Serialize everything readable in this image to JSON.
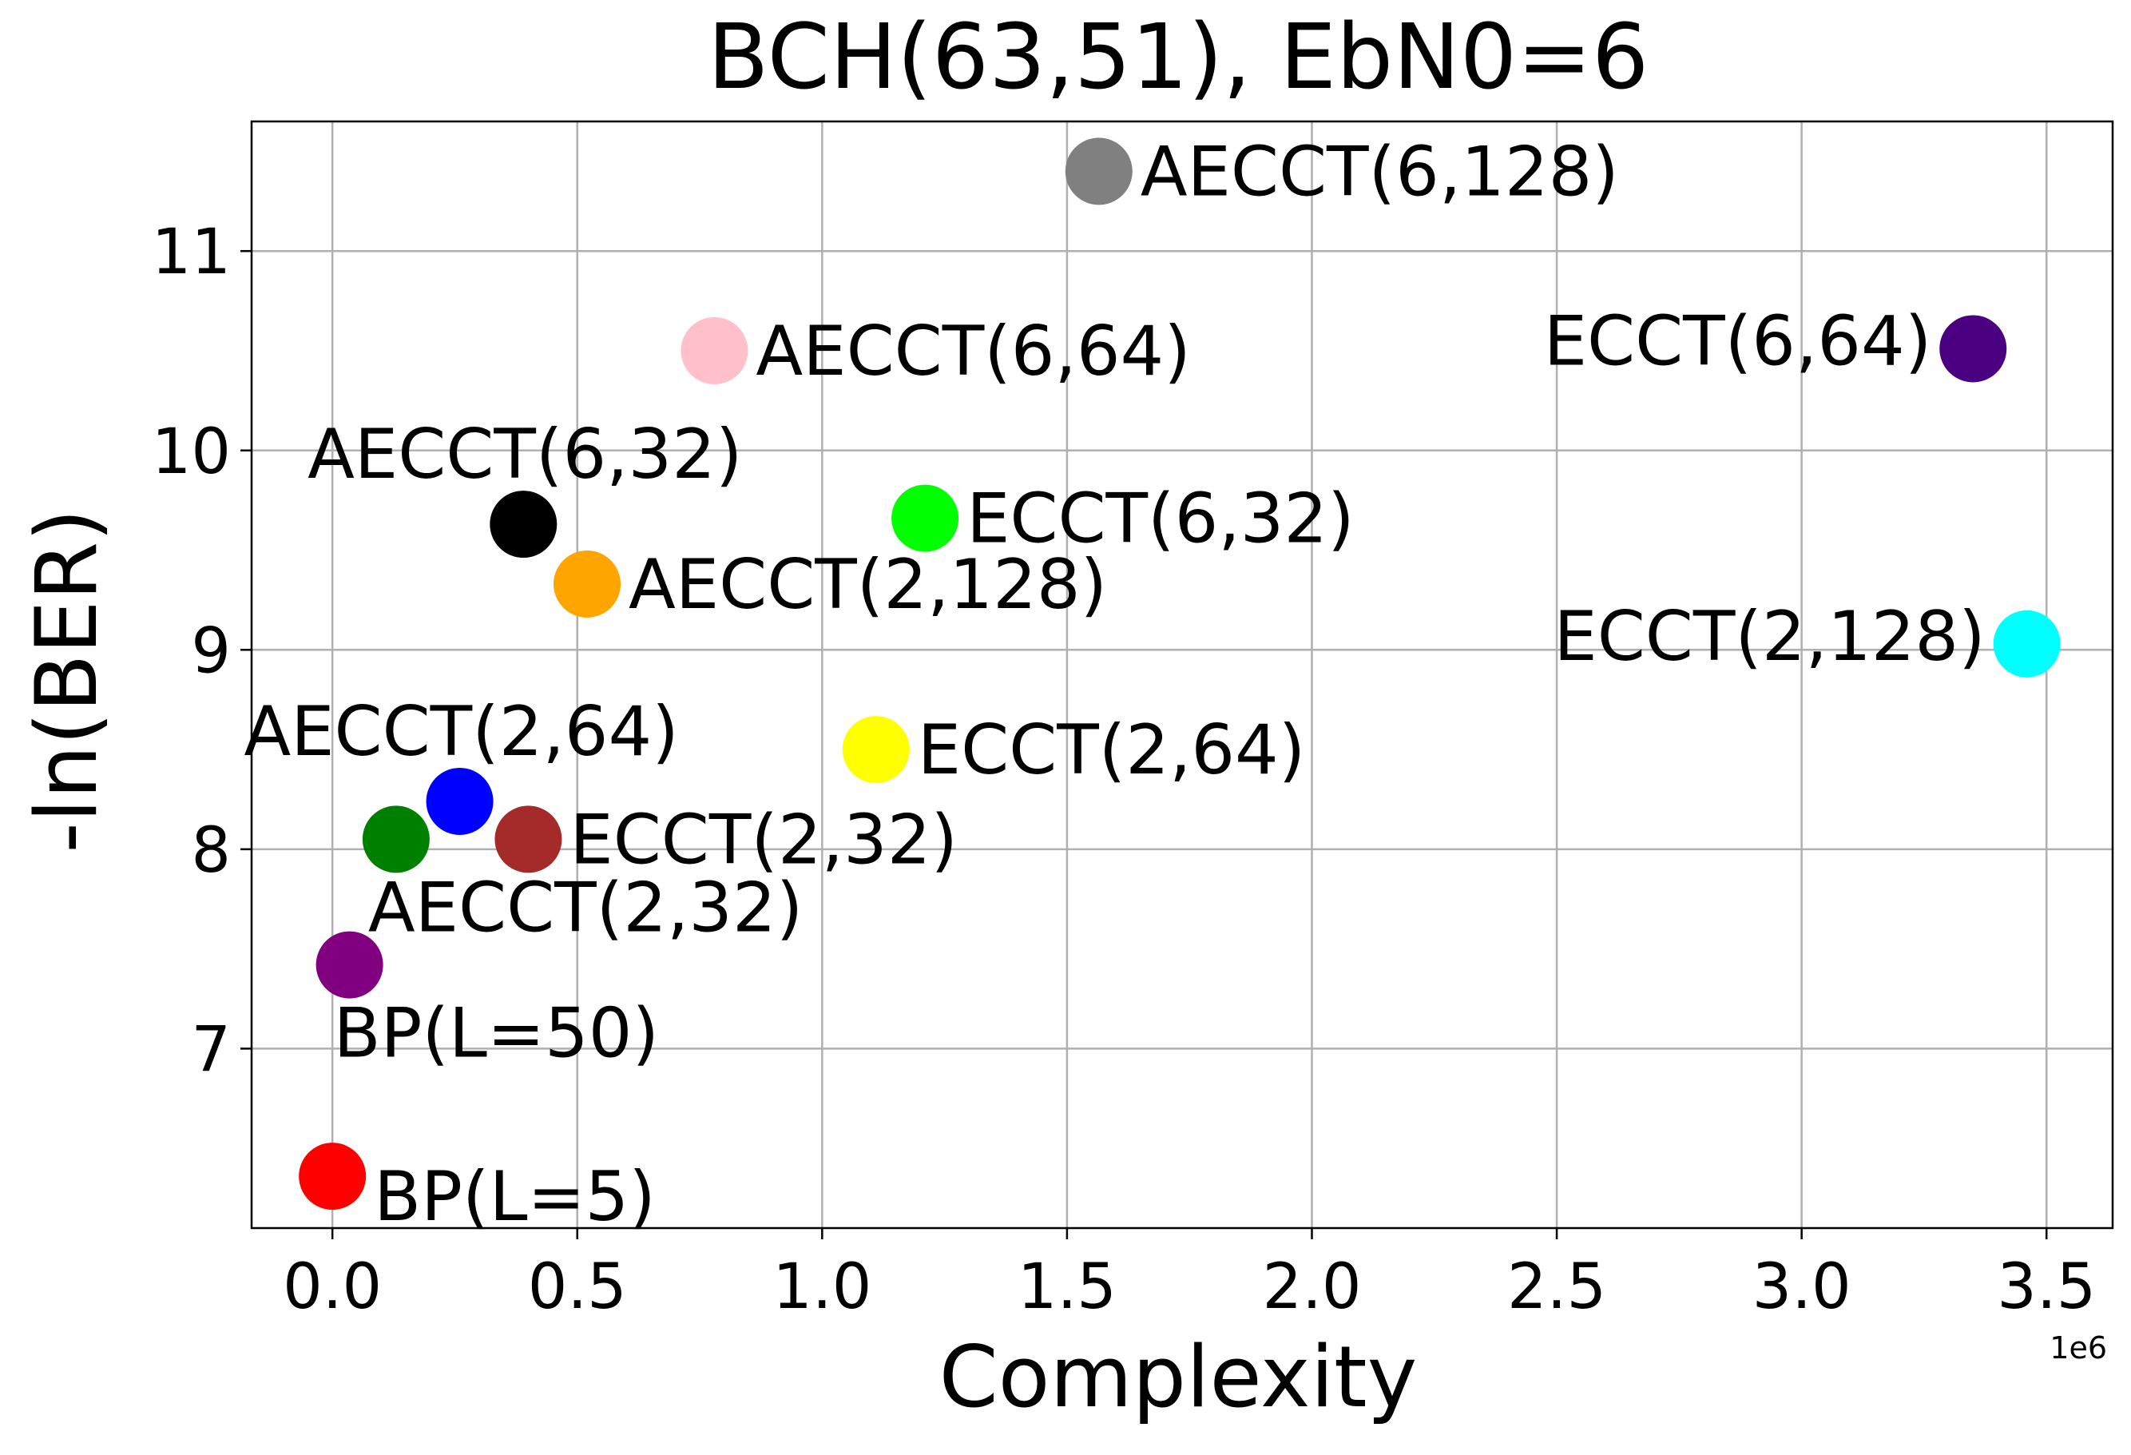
{
  "chart_data": {
    "type": "scatter",
    "title": "BCH(63,51), EbN0=6",
    "xlabel": "Complexity",
    "ylabel": "-ln(BER)",
    "x_offset_label": "1e6",
    "xlim": [
      -0.165,
      3.635
    ],
    "ylim": [
      6.1,
      11.65
    ],
    "grid": true,
    "x_ticks": [
      {
        "value": 0.0,
        "label": "0.0"
      },
      {
        "value": 0.5,
        "label": "0.5"
      },
      {
        "value": 1.0,
        "label": "1.0"
      },
      {
        "value": 1.5,
        "label": "1.5"
      },
      {
        "value": 2.0,
        "label": "2.0"
      },
      {
        "value": 2.5,
        "label": "2.5"
      },
      {
        "value": 3.0,
        "label": "3.0"
      },
      {
        "value": 3.5,
        "label": "3.5"
      }
    ],
    "y_ticks": [
      {
        "value": 7,
        "label": "7"
      },
      {
        "value": 8,
        "label": "8"
      },
      {
        "value": 9,
        "label": "9"
      },
      {
        "value": 10,
        "label": "10"
      },
      {
        "value": 11,
        "label": "11"
      }
    ],
    "points": [
      {
        "label": "BP(L=5)",
        "x": 0.0,
        "y": 6.36,
        "color": "#ff0000",
        "label_side": "right-below"
      },
      {
        "label": "BP(L=50)",
        "x": 0.035,
        "y": 7.42,
        "color": "#800080",
        "label_side": "below"
      },
      {
        "label": "AECCT(2,32)",
        "x": 0.13,
        "y": 8.05,
        "color": "#008000",
        "label_side": "below-right"
      },
      {
        "label": "AECCT(2,64)",
        "x": 0.26,
        "y": 8.24,
        "color": "#0000ff",
        "label_side": "above"
      },
      {
        "label": "ECCT(2,32)",
        "x": 0.4,
        "y": 8.05,
        "color": "#a52a2a",
        "label_side": "right"
      },
      {
        "label": "AECCT(6,32)",
        "x": 0.39,
        "y": 9.63,
        "color": "#000000",
        "label_side": "above"
      },
      {
        "label": "AECCT(2,128)",
        "x": 0.52,
        "y": 9.33,
        "color": "#ffa500",
        "label_side": "right"
      },
      {
        "label": "AECCT(6,64)",
        "x": 0.78,
        "y": 10.5,
        "color": "#ffc0cb",
        "label_side": "right"
      },
      {
        "label": "ECCT(2,64)",
        "x": 1.11,
        "y": 8.5,
        "color": "#ffff00",
        "label_side": "right"
      },
      {
        "label": "ECCT(6,32)",
        "x": 1.21,
        "y": 9.66,
        "color": "#00ff00",
        "label_side": "right"
      },
      {
        "label": "AECCT(6,128)",
        "x": 1.565,
        "y": 11.4,
        "color": "#808080",
        "label_side": "right"
      },
      {
        "label": "ECCT(6,64)",
        "x": 3.35,
        "y": 10.51,
        "color": "#4b0082",
        "label_side": "left"
      },
      {
        "label": "ECCT(2,128)",
        "x": 3.46,
        "y": 9.03,
        "color": "#00ffff",
        "label_side": "left"
      }
    ]
  }
}
